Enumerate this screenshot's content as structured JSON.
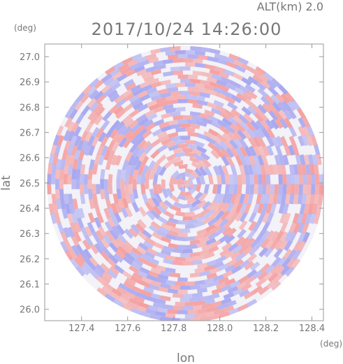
{
  "chart_data": {
    "type": "heatmap",
    "title": "2017/10/24 14:26:00",
    "subtitle": "ALT(km) 2.0",
    "xlabel": "lon",
    "ylabel": "lat",
    "x_unit": "(deg)",
    "y_unit": "(deg)",
    "xlim": [
      127.24,
      128.45
    ],
    "ylim": [
      25.955,
      27.05
    ],
    "x_ticks": [
      "127.4",
      "127.6",
      "127.8",
      "128.0",
      "128.2",
      "128.4"
    ],
    "y_ticks": [
      "26.0",
      "26.1",
      "26.2",
      "26.3",
      "26.4",
      "26.5",
      "26.6",
      "26.7",
      "26.8",
      "26.9",
      "27.0"
    ],
    "center": {
      "lon": 127.85,
      "lat": 26.495
    },
    "radius_deg": 0.6,
    "colors": {
      "positive": "#f4a0a0",
      "negative": "#a8a8f0",
      "axis": "#999999",
      "text": "#777777"
    },
    "grid": false
  }
}
